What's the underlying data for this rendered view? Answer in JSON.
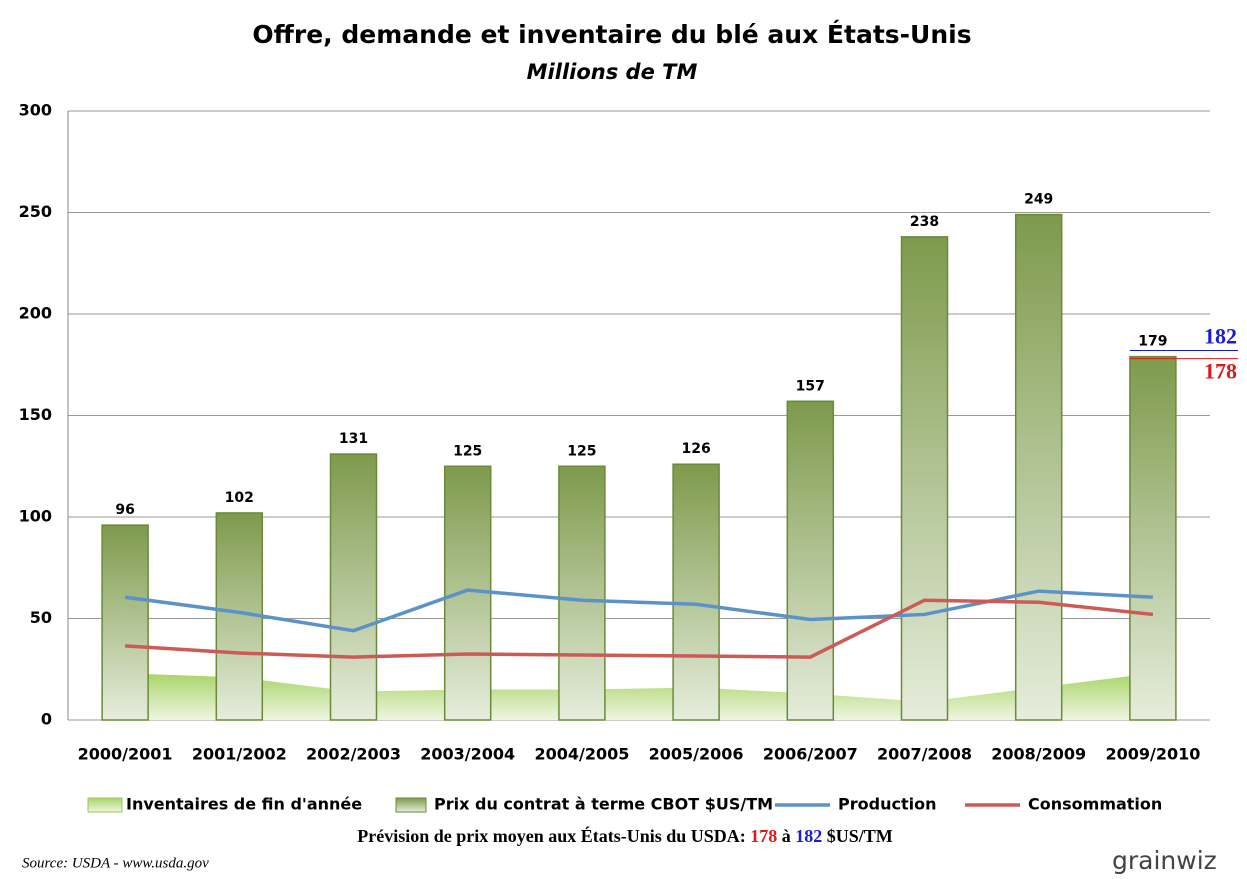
{
  "chart_data": {
    "type": "bar",
    "title": "Offre, demande et inventaire du blé aux États-Unis",
    "subtitle": "Millions de TM",
    "categories": [
      "2000/2001",
      "2001/2002",
      "2002/2003",
      "2003/2004",
      "2004/2005",
      "2005/2006",
      "2006/2007",
      "2007/2008",
      "2008/2009",
      "2009/2010"
    ],
    "series": [
      {
        "name": "Inventaires de fin d'année",
        "kind": "area",
        "color": "#a9d468",
        "values": [
          23,
          21,
          14,
          15,
          15,
          16,
          13,
          9,
          16,
          23
        ]
      },
      {
        "name": "Prix du contrat à terme CBOT $US/TM",
        "kind": "bar",
        "color": "#7d9a4c",
        "values": [
          96,
          102,
          131,
          125,
          125,
          126,
          157,
          238,
          249,
          179
        ]
      },
      {
        "name": "Production",
        "kind": "line",
        "color": "#5b93c8",
        "values": [
          60.5,
          53,
          44,
          64,
          59,
          57,
          49.5,
          52,
          63.5,
          60.5
        ]
      },
      {
        "name": "Consommation",
        "kind": "line",
        "color": "#cc5b57",
        "values": [
          36.5,
          33,
          31,
          32.5,
          32,
          31.5,
          31,
          59,
          58,
          52
        ]
      }
    ],
    "ylim": [
      0,
      300
    ],
    "yticks": [
      0,
      50,
      100,
      150,
      200,
      250,
      300
    ],
    "grid": true,
    "forecast": {
      "high": 182,
      "high_color": "#1a1adb",
      "low": 178,
      "low_color": "#e01818"
    },
    "note": {
      "prefix": "Prévision de prix moyen aux États-Unis du USDA: ",
      "middle": " à ",
      "suffix": " $US/TM"
    },
    "source": "Source: USDA - www.usda.gov",
    "logo": "grainwiz"
  }
}
